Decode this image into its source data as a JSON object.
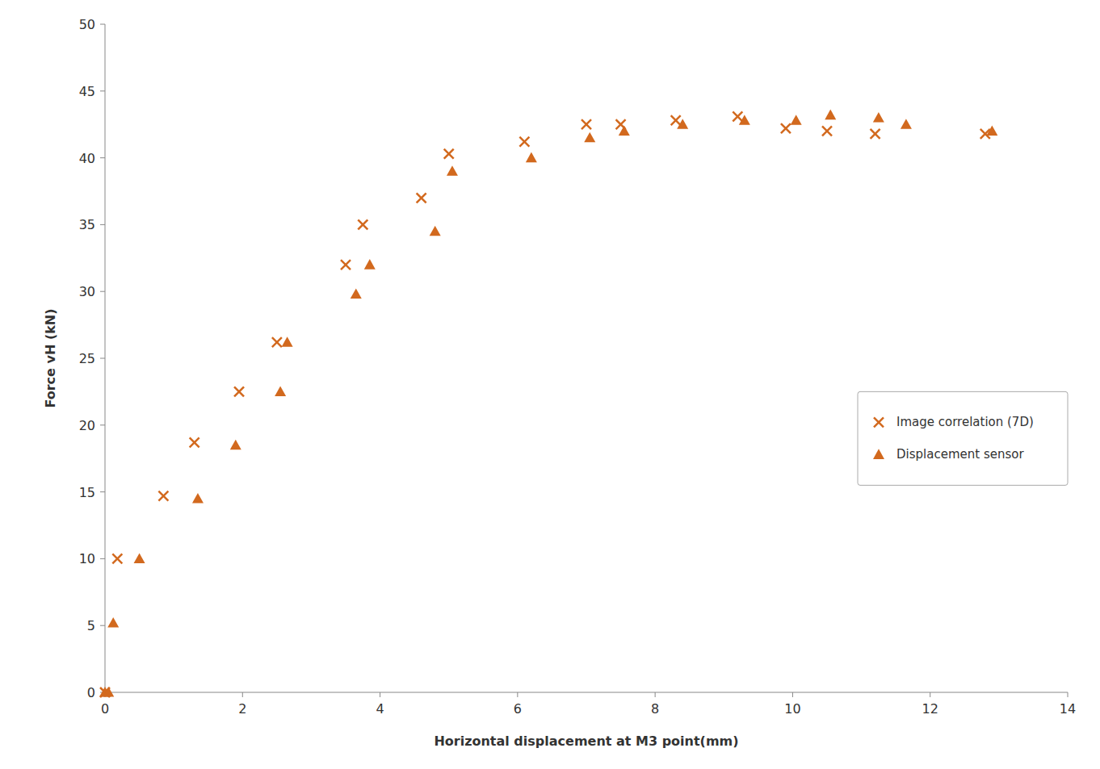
{
  "chart_data": {
    "type": "scatter",
    "xlabel": "Horizontal  displacement at M3 point(mm)",
    "ylabel": "Force vH (kN)",
    "series": [
      {
        "name": "Image correlation (7D)",
        "color": "#D2691E",
        "marker": "x",
        "x": [
          0.0,
          0.18,
          0.85,
          1.3,
          1.95,
          2.5,
          3.5,
          3.75,
          4.6,
          5.0,
          6.1,
          7.0,
          7.5,
          8.3,
          9.2,
          9.9,
          10.5,
          11.2,
          12.8
        ],
        "values": [
          0.0,
          10.0,
          14.7,
          18.7,
          22.5,
          26.2,
          32.0,
          35.0,
          37.0,
          40.3,
          41.2,
          42.5,
          42.5,
          42.8,
          43.1,
          42.2,
          42.0,
          41.8,
          41.8
        ]
      },
      {
        "name": "Displacement sensor",
        "color": "#D2691E",
        "marker": "triangle",
        "x": [
          0.0,
          0.05,
          0.12,
          0.5,
          1.35,
          1.9,
          2.55,
          2.65,
          3.65,
          3.85,
          4.8,
          5.05,
          6.2,
          7.05,
          7.55,
          8.4,
          9.3,
          10.05,
          10.55,
          11.25,
          11.65,
          12.9
        ],
        "values": [
          0.0,
          0.0,
          5.2,
          10.0,
          14.5,
          18.5,
          22.5,
          26.2,
          29.8,
          32.0,
          34.5,
          39.0,
          40.0,
          41.5,
          42.0,
          42.5,
          42.8,
          42.8,
          43.2,
          43.0,
          42.5,
          42.0
        ]
      }
    ],
    "xlim": [
      0,
      14
    ],
    "ylim": [
      0,
      50
    ],
    "xticks": [
      0,
      2,
      4,
      6,
      8,
      10,
      12,
      14
    ],
    "yticks": [
      0,
      5,
      10,
      15,
      20,
      25,
      30,
      35,
      40,
      45,
      50
    ],
    "grid": false,
    "legend": "right"
  }
}
